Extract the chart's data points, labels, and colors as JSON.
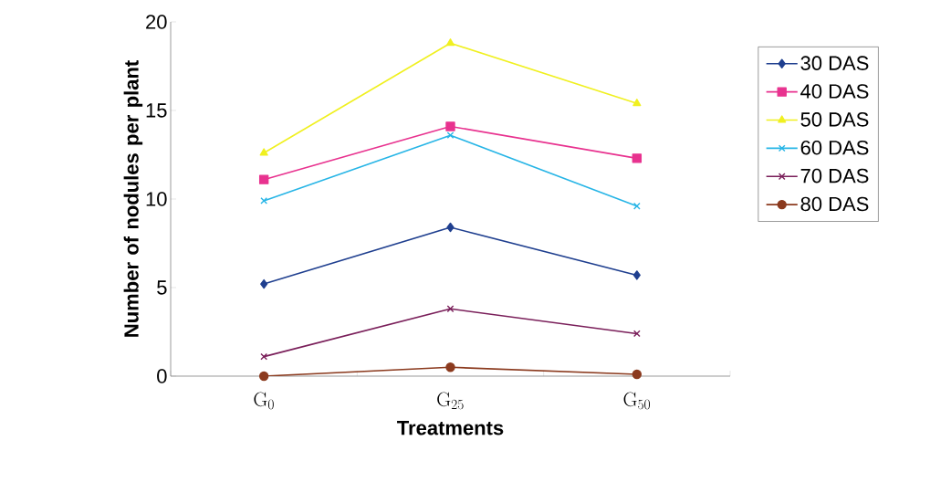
{
  "chart_data": {
    "type": "line",
    "xlabel": "Treatments",
    "ylabel": "Number of nodules per plant",
    "categories": [
      "G$_{0}$",
      "G$_{25}$",
      "G$_{50}$"
    ],
    "series": [
      {
        "name": "30 DAS",
        "color": "#1f3f8f",
        "marker": "diamond",
        "values": [
          5.2,
          8.4,
          5.7
        ]
      },
      {
        "name": "40 DAS",
        "color": "#e8328f",
        "marker": "square",
        "values": [
          11.1,
          14.1,
          12.3
        ]
      },
      {
        "name": "50 DAS",
        "color": "#f0f020",
        "marker": "triangle",
        "values": [
          12.6,
          18.8,
          15.4
        ]
      },
      {
        "name": "60 DAS",
        "color": "#27b5e6",
        "marker": "cross",
        "values": [
          9.9,
          13.6,
          9.6
        ]
      },
      {
        "name": "70 DAS",
        "color": "#7a1f5a",
        "marker": "cross",
        "values": [
          1.1,
          3.8,
          2.4
        ]
      },
      {
        "name": "80 DAS",
        "color": "#8b3a1e",
        "marker": "circle",
        "values": [
          0,
          0.5,
          0.1
        ]
      }
    ],
    "ylim": [
      0,
      20
    ],
    "yticks": [
      0,
      5,
      10,
      15,
      20
    ],
    "grid": false,
    "legend": "right"
  }
}
